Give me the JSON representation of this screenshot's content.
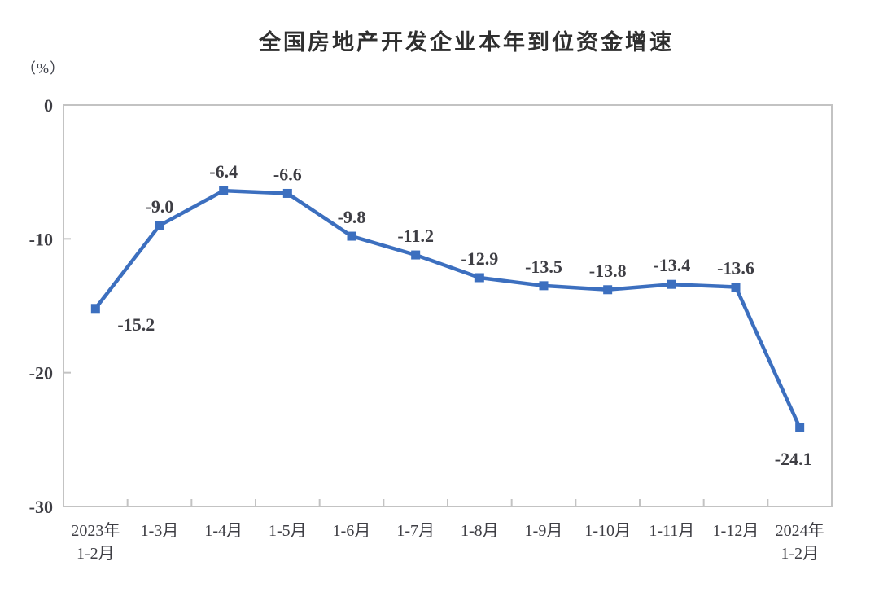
{
  "chart": {
    "title": "全国房地产开发企业本年到位资金增速",
    "unit_label": "（%）"
  },
  "chart_data": {
    "type": "line",
    "title": "全国房地产开发企业本年到位资金增速",
    "unit": "%",
    "categories": [
      "2023年\n1-2月",
      "1-3月",
      "1-4月",
      "1-5月",
      "1-6月",
      "1-7月",
      "1-8月",
      "1-9月",
      "1-10月",
      "1-11月",
      "1-12月",
      "2024年\n1-2月"
    ],
    "values": [
      -15.2,
      -9.0,
      -6.4,
      -6.6,
      -9.8,
      -11.2,
      -12.9,
      -13.5,
      -13.8,
      -13.4,
      -13.6,
      -24.1
    ],
    "point_labels": [
      "-15.2",
      "-9.0",
      "-6.4",
      "-6.6",
      "-9.8",
      "-11.2",
      "-12.9",
      "-13.5",
      "-13.8",
      "-13.4",
      "-13.6",
      "-24.1"
    ],
    "label_positions": [
      "below-right",
      "above",
      "above",
      "above",
      "above",
      "above",
      "above",
      "above",
      "above",
      "above",
      "above",
      "below"
    ],
    "xlabel": "",
    "ylabel": "（%）",
    "ylim": [
      -30,
      0
    ],
    "yticks": [
      0,
      -10,
      -20,
      -30
    ],
    "grid": false,
    "legend_position": "none",
    "marker": "square",
    "series_color": "#3c6fbf",
    "label_color": "#3e3e44",
    "axis_color": "#c3c3c3"
  }
}
